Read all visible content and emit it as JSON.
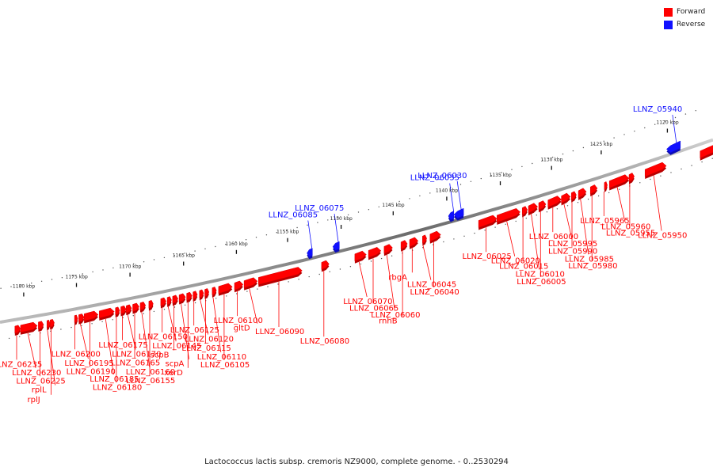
{
  "legend": {
    "forward_label": "Forward",
    "reverse_label": "Reverse",
    "forward_color": "#ff0000",
    "reverse_color": "#1010ff"
  },
  "caption": "Lactococcus lactis subsp. cremoris NZ9000, complete genome. - 0..2530294",
  "genome": {
    "kb_min": 1118,
    "kb_max": 1182,
    "kbp_unit": "kbp",
    "tick_labels_kb": [
      1180,
      1175,
      1170,
      1165,
      1160,
      1155,
      1150,
      1145,
      1140,
      1135,
      1130,
      1125,
      1120
    ]
  },
  "genes": [
    {
      "name": "LLNZ_06235",
      "strand": "+",
      "start_kb": 1181.0,
      "end_kb": 1180.6,
      "label_order": 0
    },
    {
      "name": "LLNZ_06230",
      "strand": "+",
      "start_kb": 1180.6,
      "end_kb": 1179.2,
      "label_order": 1
    },
    {
      "name": "LLNZ_06225",
      "strand": "+",
      "start_kb": 1179.1,
      "end_kb": 1178.6,
      "label_order": 2
    },
    {
      "name": "rplL",
      "strand": "+",
      "start_kb": 1178.3,
      "end_kb": 1178.0,
      "label_order": 3
    },
    {
      "name": "rplJ",
      "strand": "+",
      "start_kb": 1178.0,
      "end_kb": 1177.6,
      "label_order": 4
    },
    {
      "name": "LLNZ_06200",
      "strand": "+",
      "start_kb": 1175.7,
      "end_kb": 1175.4,
      "label_order": 5
    },
    {
      "name": "LLNZ_06195",
      "strand": "+",
      "start_kb": 1175.3,
      "end_kb": 1174.8,
      "label_order": 6
    },
    {
      "name": "LLNZ_06190",
      "strand": "+",
      "start_kb": 1174.8,
      "end_kb": 1173.5,
      "label_order": 7
    },
    {
      "name": "LLNZ_06185",
      "strand": "+",
      "start_kb": 1173.4,
      "end_kb": 1172.0,
      "label_order": 8
    },
    {
      "name": "LLNZ_06180",
      "strand": "+",
      "start_kb": 1171.9,
      "end_kb": 1171.5,
      "label_order": 9
    },
    {
      "name": "LLNZ_06175",
      "strand": "+",
      "start_kb": 1171.4,
      "end_kb": 1170.9,
      "label_order": 10
    },
    {
      "name": "LLNZ_06170",
      "strand": "+",
      "start_kb": 1170.9,
      "end_kb": 1170.4,
      "label_order": 11
    },
    {
      "name": "LLNZ_06165",
      "strand": "+",
      "start_kb": 1170.3,
      "end_kb": 1169.7,
      "label_order": 12
    },
    {
      "name": "LLNZ_06160",
      "strand": "+",
      "start_kb": 1169.6,
      "end_kb": 1169.1,
      "label_order": 13
    },
    {
      "name": "LLNZ_06155",
      "strand": "+",
      "start_kb": 1168.8,
      "end_kb": 1168.4,
      "label_order": 14
    },
    {
      "name": "LLNZ_06150",
      "strand": "+",
      "start_kb": 1167.7,
      "end_kb": 1167.2,
      "label_order": 15
    },
    {
      "name": "LLNZ_06145",
      "strand": "+",
      "start_kb": 1167.1,
      "end_kb": 1166.7,
      "label_order": 16
    },
    {
      "name": "scpB",
      "strand": "+",
      "start_kb": 1166.6,
      "end_kb": 1166.1,
      "label_order": 17
    },
    {
      "name": "scpA",
      "strand": "+",
      "start_kb": 1166.0,
      "end_kb": 1165.4,
      "label_order": 18
    },
    {
      "name": "xerD",
      "strand": "+",
      "start_kb": 1165.3,
      "end_kb": 1164.8,
      "label_order": 19
    },
    {
      "name": "LLNZ_06125",
      "strand": "+",
      "start_kb": 1164.7,
      "end_kb": 1164.3,
      "label_order": 20
    },
    {
      "name": "LLNZ_06120",
      "strand": "+",
      "start_kb": 1164.1,
      "end_kb": 1163.7,
      "label_order": 21
    },
    {
      "name": "LLNZ_06115",
      "strand": "+",
      "start_kb": 1163.6,
      "end_kb": 1163.2,
      "label_order": 22
    },
    {
      "name": "LLNZ_06110",
      "strand": "+",
      "start_kb": 1162.9,
      "end_kb": 1162.5,
      "label_order": 23
    },
    {
      "name": "LLNZ_06105",
      "strand": "+",
      "start_kb": 1162.3,
      "end_kb": 1161.0,
      "label_order": 24
    },
    {
      "name": "LLNZ_06100",
      "strand": "+",
      "start_kb": 1160.8,
      "end_kb": 1160.0,
      "label_order": 25
    },
    {
      "name": "gltD",
      "strand": "+",
      "start_kb": 1159.9,
      "end_kb": 1158.6,
      "label_order": 26
    },
    {
      "name": "LLNZ_06090",
      "strand": "+",
      "start_kb": 1158.5,
      "end_kb": 1154.3,
      "label_order": 27
    },
    {
      "name": "LLNZ_06085",
      "strand": "-",
      "start_kb": 1153.5,
      "end_kb": 1153.0,
      "label_order": 28
    },
    {
      "name": "LLNZ_06080",
      "strand": "+",
      "start_kb": 1152.5,
      "end_kb": 1151.8,
      "label_order": 29
    },
    {
      "name": "LLNZ_06075",
      "strand": "-",
      "start_kb": 1151.1,
      "end_kb": 1150.5,
      "label_order": 30
    },
    {
      "name": "LLNZ_06070",
      "strand": "+",
      "start_kb": 1149.4,
      "end_kb": 1148.3,
      "label_order": 31
    },
    {
      "name": "LLNZ_06065",
      "strand": "+",
      "start_kb": 1148.1,
      "end_kb": 1146.9,
      "label_order": 32
    },
    {
      "name": "LLNZ_06060",
      "strand": "+",
      "start_kb": 1146.6,
      "end_kb": 1145.8,
      "label_order": 33
    },
    {
      "name": "rnhB",
      "strand": "+",
      "start_kb": 1145.0,
      "end_kb": 1144.4,
      "label_order": 34
    },
    {
      "name": "rbgA",
      "strand": "+",
      "start_kb": 1144.2,
      "end_kb": 1143.4,
      "label_order": 35
    },
    {
      "name": "LLNZ_06045",
      "strand": "+",
      "start_kb": 1143.0,
      "end_kb": 1142.6,
      "label_order": 36
    },
    {
      "name": "LLNZ_06040",
      "strand": "+",
      "start_kb": 1142.3,
      "end_kb": 1141.3,
      "label_order": 37
    },
    {
      "name": "LLNZ_06035",
      "strand": "-",
      "start_kb": 1140.2,
      "end_kb": 1139.7,
      "label_order": 38
    },
    {
      "name": "LLNZ_06030",
      "strand": "-",
      "start_kb": 1139.7,
      "end_kb": 1138.8,
      "label_order": 39
    },
    {
      "name": "LLNZ_06025",
      "strand": "+",
      "start_kb": 1137.8,
      "end_kb": 1136.1,
      "label_order": 40
    },
    {
      "name": "LLNZ_06020",
      "strand": "+",
      "start_kb": 1136.1,
      "end_kb": 1133.9,
      "label_order": 41
    },
    {
      "name": "LLNZ_06015",
      "strand": "+",
      "start_kb": 1133.7,
      "end_kb": 1133.2,
      "label_order": 42
    },
    {
      "name": "LLNZ_06010",
      "strand": "+",
      "start_kb": 1133.1,
      "end_kb": 1132.2,
      "label_order": 43
    },
    {
      "name": "LLNZ_06005",
      "strand": "+",
      "start_kb": 1132.1,
      "end_kb": 1131.4,
      "label_order": 44
    },
    {
      "name": "LLNZ_06000",
      "strand": "+",
      "start_kb": 1131.2,
      "end_kb": 1129.9,
      "label_order": 45
    },
    {
      "name": "LLNZ_05995",
      "strand": "+",
      "start_kb": 1129.9,
      "end_kb": 1129.0,
      "label_order": 46
    },
    {
      "name": "LLNZ_05990",
      "strand": "+",
      "start_kb": 1128.9,
      "end_kb": 1128.4,
      "label_order": 47
    },
    {
      "name": "LLNZ_05985",
      "strand": "+",
      "start_kb": 1128.2,
      "end_kb": 1127.4,
      "label_order": 48
    },
    {
      "name": "LLNZ_05980",
      "strand": "+",
      "start_kb": 1127.0,
      "end_kb": 1126.3,
      "label_order": 49
    },
    {
      "name": "LLNZ_05965",
      "strand": "+",
      "start_kb": 1125.6,
      "end_kb": 1125.3,
      "label_order": 50
    },
    {
      "name": "LLNZ_05960",
      "strand": "+",
      "start_kb": 1125.1,
      "end_kb": 1123.6,
      "label_order": 51
    },
    {
      "name": "LLNZ_05955",
      "strand": "+",
      "start_kb": 1123.6,
      "end_kb": 1123.2,
      "label_order": 52
    },
    {
      "name": "LLNZ_05950",
      "strand": "+",
      "start_kb": 1122.4,
      "end_kb": 1120.8,
      "label_order": 53
    },
    {
      "name": "LLNZ_05940",
      "strand": "-",
      "start_kb": 1120.4,
      "end_kb": 1119.6,
      "label_order": 54
    },
    {
      "name": "",
      "strand": "+",
      "start_kb": 1118.9,
      "end_kb": 1118.0,
      "label_order": 55
    }
  ]
}
